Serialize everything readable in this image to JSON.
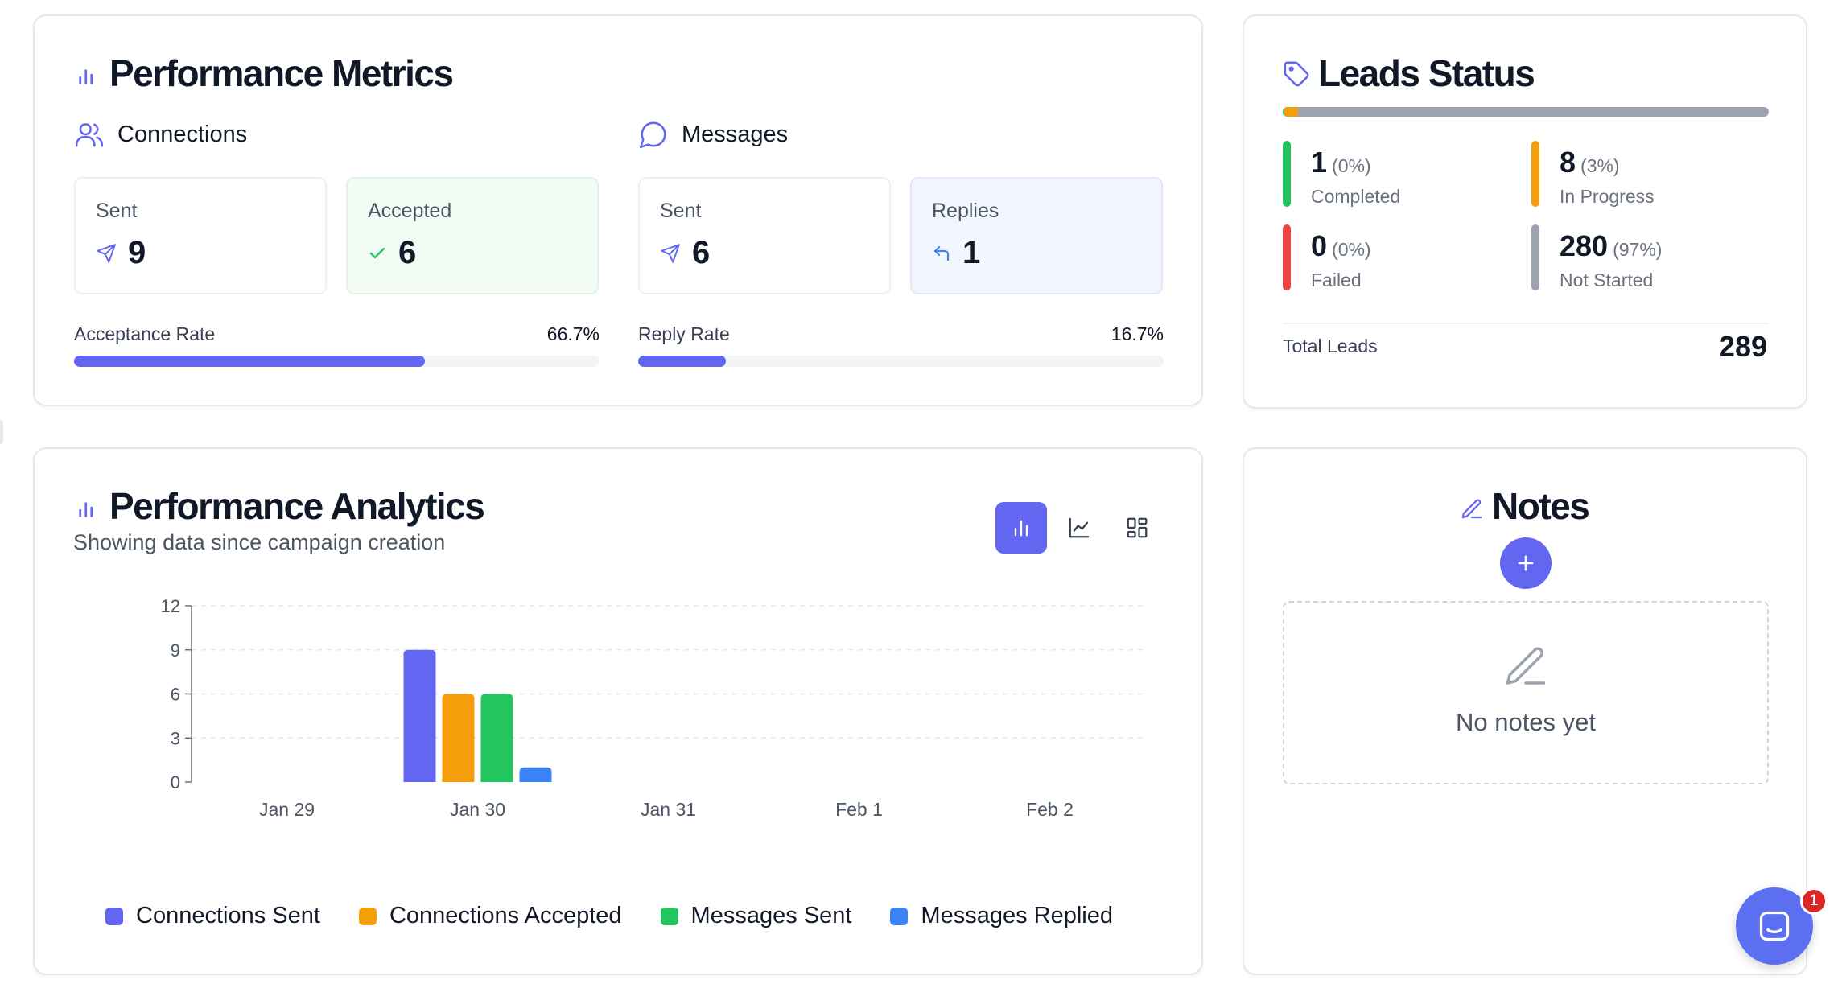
{
  "performance_metrics": {
    "title": "Performance Metrics",
    "connections": {
      "heading": "Connections",
      "sent_label": "Sent",
      "sent_value": "9",
      "accepted_label": "Accepted",
      "accepted_value": "6",
      "rate_label": "Acceptance Rate",
      "rate_value": "66.7%",
      "rate_fraction": 0.667
    },
    "messages": {
      "heading": "Messages",
      "sent_label": "Sent",
      "sent_value": "6",
      "replies_label": "Replies",
      "replies_value": "1",
      "rate_label": "Reply Rate",
      "rate_value": "16.7%",
      "rate_fraction": 0.167
    }
  },
  "leads_status": {
    "title": "Leads Status",
    "items": [
      {
        "count": "1",
        "pct": "(0%)",
        "label": "Completed",
        "color": "#22c55e"
      },
      {
        "count": "8",
        "pct": "(3%)",
        "label": "In Progress",
        "color": "#f59e0b"
      },
      {
        "count": "0",
        "pct": "(0%)",
        "label": "Failed",
        "color": "#ef4444"
      },
      {
        "count": "280",
        "pct": "(97%)",
        "label": "Not Started",
        "color": "#9ca3af"
      }
    ],
    "total_label": "Total Leads",
    "total_value": "289"
  },
  "analytics": {
    "title": "Performance Analytics",
    "subtitle": "Showing data since campaign creation",
    "view_buttons": [
      "bar-chart-icon",
      "line-chart-icon",
      "grid-icon"
    ],
    "active_view": "bar-chart-icon"
  },
  "chart_data": {
    "type": "bar",
    "categories": [
      "Jan 29",
      "Jan 30",
      "Jan 31",
      "Feb 1",
      "Feb 2"
    ],
    "series": [
      {
        "name": "Connections Sent",
        "color": "#6366f1",
        "values": [
          0,
          9,
          0,
          0,
          0
        ]
      },
      {
        "name": "Connections Accepted",
        "color": "#f59e0b",
        "values": [
          0,
          6,
          0,
          0,
          0
        ]
      },
      {
        "name": "Messages Sent",
        "color": "#22c55e",
        "values": [
          0,
          6,
          0,
          0,
          0
        ]
      },
      {
        "name": "Messages Replied",
        "color": "#3b82f6",
        "values": [
          0,
          1,
          0,
          0,
          0
        ]
      }
    ],
    "yticks": [
      0,
      3,
      6,
      9,
      12
    ],
    "ylim": [
      0,
      12
    ],
    "grid": true,
    "legend": "bottom"
  },
  "notes": {
    "title": "Notes",
    "empty_text": "No notes yet"
  },
  "chat": {
    "badge": "1"
  },
  "colors": {
    "accent": "#6366f1",
    "green": "#22c55e",
    "amber": "#f59e0b",
    "blue": "#3b82f6",
    "red": "#ef4444",
    "gray": "#9ca3af"
  }
}
